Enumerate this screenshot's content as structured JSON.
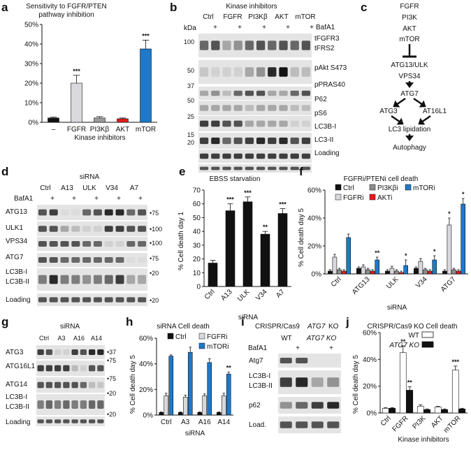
{
  "panels": {
    "a": {
      "letter": "a",
      "title1": "Sensitivity to FGFR/PTEN",
      "title2": "pathway inhibition",
      "xlabel": "Kinase inhibitors",
      "chart_data": {
        "type": "bar",
        "categories": [
          "–",
          "FGFR",
          "PI3Kβ",
          "AKT",
          "mTOR"
        ],
        "values": [
          2.2,
          20,
          2.2,
          1.8,
          37.5
        ],
        "errors": [
          0.4,
          4,
          0.7,
          0.4,
          4.5
        ],
        "colors": [
          "#111111",
          "#d9d9dd",
          "#9a9a9a",
          "#e31a1c",
          "#1f78c8"
        ],
        "sig": [
          "",
          "***",
          "",
          "",
          "***"
        ],
        "yticks": [
          "0%",
          "10%",
          "20%",
          "30%",
          "40%",
          "50%"
        ],
        "ylim": [
          0,
          50
        ]
      }
    },
    "b": {
      "letter": "b",
      "title": "Kinase inhibitors",
      "groups": [
        "Ctrl",
        "FGFR",
        "PI3Kβ",
        "AKT",
        "mTOR"
      ],
      "plus": [
        "+",
        "+",
        "+",
        "+",
        "+"
      ],
      "bafa1": "BafA1",
      "kda": "kDa",
      "rows": [
        "tFGFR3",
        "tFRS2",
        "pAkt S473",
        "pPRAS40",
        "P62",
        "pS6",
        "LC3B-I",
        "LC3-II",
        "Loading"
      ],
      "markers": [
        "100",
        "50",
        "37",
        "50",
        "25",
        "15",
        "20"
      ]
    },
    "c": {
      "letter": "c",
      "nodes": [
        "FGFR",
        "PI3K",
        "AKT",
        "mTOR",
        "ATG13/ULK",
        "VPS34",
        "ATG7",
        "ATG3",
        "AT16L1",
        "LC3 lipidation",
        "Autophagy"
      ]
    },
    "d": {
      "letter": "d",
      "title": "siRNA",
      "groups": [
        "Ctrl",
        "A13",
        "ULK",
        "V34",
        "A7"
      ],
      "plus": [
        "+",
        "+",
        "+",
        "+",
        "+"
      ],
      "bafa1": "BafA1",
      "rows": [
        "ATG13",
        "ULK1",
        "VPS34",
        "ATG7",
        "LC3B-I",
        "LC3B-II",
        "Loading"
      ],
      "markers": [
        "75",
        "100",
        "100",
        "75",
        "20",
        "20"
      ]
    },
    "e": {
      "letter": "e",
      "title": "EBSS starvation",
      "ylabel": "% Cell death day 1",
      "xlabel": "siRNA",
      "chart_data": {
        "type": "bar",
        "categories": [
          "Ctrl",
          "A13",
          "ULK",
          "V34",
          "A7"
        ],
        "values": [
          17,
          55,
          61.5,
          38,
          53
        ],
        "errors": [
          2,
          5,
          3.5,
          2,
          3.5
        ],
        "sig": [
          "",
          "***",
          "***",
          "**",
          "***"
        ],
        "yticks": [
          "0",
          "10",
          "20",
          "30",
          "40",
          "50",
          "60",
          "70"
        ],
        "ylim": [
          0,
          70
        ]
      }
    },
    "f": {
      "letter": "f",
      "title": "FGFRi/PTENi cell death",
      "ylabel": "% Cell death day 5",
      "xlabel": "siRNA",
      "legend": [
        {
          "name": "Ctrl",
          "color": "#111111"
        },
        {
          "name": "PI3Kβi",
          "color": "#8c8c8c"
        },
        {
          "name": "mTORi",
          "color": "#1f78c8"
        },
        {
          "name": "FGFRi",
          "color": "#d9d9dd"
        },
        {
          "name": "AKTi",
          "color": "#e31a1c"
        }
      ],
      "chart_data": {
        "type": "bar",
        "categories": [
          "Ctrl",
          "ATG13",
          "ULK",
          "V34",
          "ATG7"
        ],
        "series_order": [
          "Ctrl",
          "FGFRi",
          "PI3Kβi",
          "AKTi",
          "mTORi"
        ],
        "values": [
          [
            2,
            12,
            3,
            2,
            26
          ],
          [
            4,
            5,
            3,
            2,
            10
          ],
          [
            2,
            4,
            2,
            1,
            6
          ],
          [
            4,
            9,
            3,
            2,
            10
          ],
          [
            2,
            35,
            3,
            2,
            50
          ]
        ],
        "errors": [
          [
            1,
            2,
            1,
            1,
            2.5
          ],
          [
            1,
            1.5,
            1,
            1,
            2
          ],
          [
            1,
            1.5,
            1,
            1,
            4
          ],
          [
            1,
            2,
            1,
            1,
            3
          ],
          [
            1,
            5,
            1,
            1,
            4
          ]
        ],
        "sig": [
          "",
          "**",
          "*",
          "*",
          "*"
        ],
        "sig2": [
          "",
          "",
          "",
          "",
          "*"
        ],
        "yticks": [
          "0%",
          "20%",
          "40%",
          "60%"
        ],
        "ylim": [
          0,
          60
        ]
      }
    },
    "g": {
      "letter": "g",
      "title": "siRNA",
      "groups": [
        "Ctrl",
        "A3",
        "A16",
        "A14"
      ],
      "rows": [
        "ATG3",
        "ATG16L1",
        "ATG14",
        "LC3B-I",
        "LC3B-II",
        "Loading"
      ],
      "markers": [
        "37",
        "75",
        "75",
        "20",
        "20"
      ]
    },
    "h": {
      "letter": "h",
      "title": "siRNA Cell death",
      "ylabel": "% Cell death day 5",
      "xlabel": "siRNA",
      "legend": [
        {
          "name": "Ctrl",
          "color": "#111111"
        },
        {
          "name": "FGFRi",
          "color": "#d9d9dd"
        },
        {
          "name": "mTORi",
          "color": "#1f78c8"
        }
      ],
      "chart_data": {
        "type": "bar",
        "categories": [
          "Ctrl",
          "A3",
          "A16",
          "A14"
        ],
        "series_order": [
          "Ctrl",
          "FGFRi",
          "mTORi"
        ],
        "values": [
          [
            2,
            15,
            46
          ],
          [
            2,
            14,
            49
          ],
          [
            2,
            15,
            41
          ],
          [
            2,
            15,
            32
          ]
        ],
        "errors": [
          [
            0.5,
            2,
            1
          ],
          [
            0.5,
            1.5,
            4
          ],
          [
            0.5,
            1.5,
            3
          ],
          [
            0.5,
            2,
            1.5
          ]
        ],
        "sig": [
          "",
          "",
          "",
          "**"
        ],
        "yticks": [
          "0%",
          "20%",
          "40%",
          "60%"
        ],
        "ylim": [
          0,
          60
        ]
      }
    },
    "i": {
      "letter": "i",
      "title1": "CRISPR/Cas9",
      "title2": "ATG7",
      "title3": "KO",
      "groups": [
        "WT",
        "ATG7 KO"
      ],
      "plus": [
        "+",
        "+"
      ],
      "bafa1": "BafA1",
      "rows": [
        "Atg7",
        "LC3B-I",
        "LC3B-II",
        "p62",
        "Load."
      ]
    },
    "j": {
      "letter": "j",
      "title": "CRISPR/Cas9 KO Cell death",
      "ylabel": "% Cell death day 5",
      "xlabel": "Kinase inhibitors",
      "legend": [
        {
          "name": "WT",
          "color": "#ffffff"
        },
        {
          "name": "ATG7 KO",
          "color": "#111111"
        }
      ],
      "chart_data": {
        "type": "bar",
        "categories": [
          "Ctrl",
          "FGFR",
          "PI3K",
          "AKT",
          "mTOR"
        ],
        "series_order": [
          "WT",
          "ATG7 KO"
        ],
        "values": [
          [
            3.5,
            3.5
          ],
          [
            45,
            17
          ],
          [
            5,
            2.5
          ],
          [
            4.5,
            2.5
          ],
          [
            32,
            3
          ]
        ],
        "errors": [
          [
            0.5,
            0.5
          ],
          [
            5,
            2.5
          ],
          [
            1,
            0.5
          ],
          [
            0.5,
            0.5
          ],
          [
            3,
            0.5
          ]
        ],
        "sig": [
          [
            "",
            ""
          ],
          [
            "**",
            "**"
          ],
          [
            "",
            ""
          ],
          [
            "",
            ""
          ],
          [
            "***",
            ""
          ]
        ],
        "yticks": [
          "0%",
          "20%",
          "40%",
          "60%"
        ],
        "ylim": [
          0,
          60
        ]
      }
    }
  }
}
